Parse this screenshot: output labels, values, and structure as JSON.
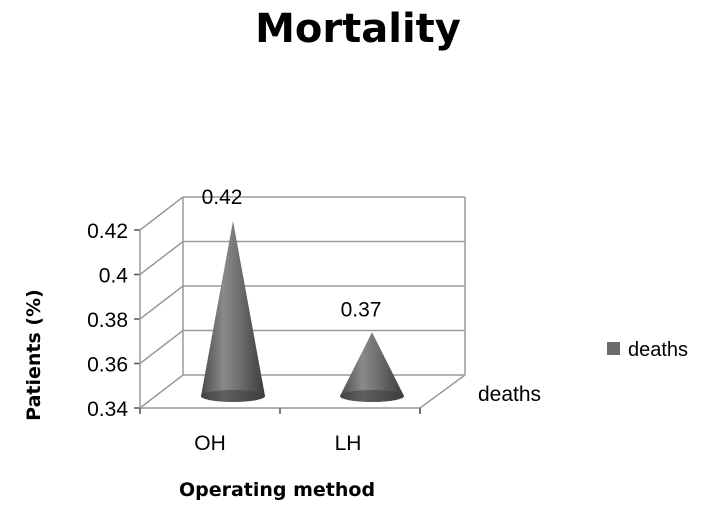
{
  "chart_data": {
    "type": "bar",
    "shape": "cone-3d",
    "title": "Mortality",
    "xlabel": "Operating method",
    "ylabel": "Patients (%)",
    "categories": [
      "OH",
      "LH"
    ],
    "series": [
      {
        "name": "deaths",
        "values": [
          0.42,
          0.37
        ]
      }
    ],
    "data_labels": [
      "0.42",
      "0.37"
    ],
    "depth_axis_label": "deaths",
    "y_ticks": [
      "0.34",
      "0.36",
      "0.38",
      "0.4",
      "0.42"
    ],
    "ylim": [
      0.34,
      0.42
    ],
    "grid": true,
    "legend": {
      "position": "right",
      "entries": [
        "deaths"
      ]
    },
    "colors": {
      "series": "#6b6b6b",
      "grid": "#9a9a9a"
    }
  }
}
